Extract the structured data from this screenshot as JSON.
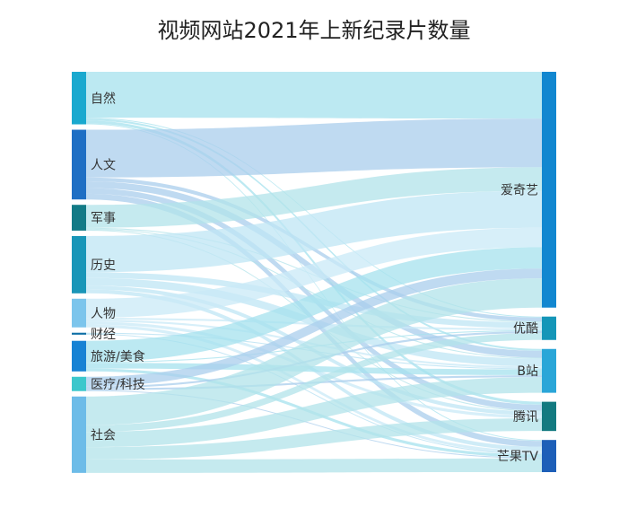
{
  "chart_data": {
    "type": "sankey",
    "title": "视频网站2021年上新纪录片数量",
    "sources": [
      {
        "name": "自然",
        "color": "#1aa9cf"
      },
      {
        "name": "人文",
        "color": "#1f6fc4"
      },
      {
        "name": "军事",
        "color": "#127a86"
      },
      {
        "name": "历史",
        "color": "#1996b8"
      },
      {
        "name": "人物",
        "color": "#7cc5ec"
      },
      {
        "name": "财经",
        "color": "#0e6fa6"
      },
      {
        "name": "旅游/美食",
        "color": "#1682d4"
      },
      {
        "name": "医疗/科技",
        "color": "#3cc7cc"
      },
      {
        "name": "社会",
        "color": "#6dbce8"
      }
    ],
    "targets": [
      {
        "name": "爱奇艺",
        "color": "#1287d0"
      },
      {
        "name": "优酷",
        "color": "#1496b8"
      },
      {
        "name": "B站",
        "color": "#2aa6d8"
      },
      {
        "name": "腾讯",
        "color": "#137a80"
      },
      {
        "name": "芒果TV",
        "color": "#1d5fb8"
      }
    ],
    "links": [
      {
        "source": "自然",
        "target": "爱奇艺",
        "value": 48
      },
      {
        "source": "自然",
        "target": "优酷",
        "value": 1
      },
      {
        "source": "自然",
        "target": "B站",
        "value": 2
      },
      {
        "source": "自然",
        "target": "腾讯",
        "value": 3
      },
      {
        "source": "自然",
        "target": "芒果TV",
        "value": 1
      },
      {
        "source": "人文",
        "target": "爱奇艺",
        "value": 50
      },
      {
        "source": "人文",
        "target": "优酷",
        "value": 4
      },
      {
        "source": "人文",
        "target": "B站",
        "value": 7
      },
      {
        "source": "人文",
        "target": "腾讯",
        "value": 6
      },
      {
        "source": "人文",
        "target": "芒果TV",
        "value": 6
      },
      {
        "source": "军事",
        "target": "爱奇艺",
        "value": 24
      },
      {
        "source": "军事",
        "target": "优酷",
        "value": 1
      },
      {
        "source": "军事",
        "target": "B站",
        "value": 1
      },
      {
        "source": "军事",
        "target": "腾讯",
        "value": 1
      },
      {
        "source": "历史",
        "target": "爱奇艺",
        "value": 38
      },
      {
        "source": "历史",
        "target": "优酷",
        "value": 6
      },
      {
        "source": "历史",
        "target": "B站",
        "value": 8
      },
      {
        "source": "历史",
        "target": "腾讯",
        "value": 4
      },
      {
        "source": "历史",
        "target": "芒果TV",
        "value": 4
      },
      {
        "source": "人物",
        "target": "爱奇艺",
        "value": 20
      },
      {
        "source": "人物",
        "target": "优酷",
        "value": 2
      },
      {
        "source": "人物",
        "target": "B站",
        "value": 2
      },
      {
        "source": "人物",
        "target": "腾讯",
        "value": 3
      },
      {
        "source": "人物",
        "target": "芒果TV",
        "value": 3
      },
      {
        "source": "财经",
        "target": "B站",
        "value": 1
      },
      {
        "source": "财经",
        "target": "芒果TV",
        "value": 1
      },
      {
        "source": "旅游/美食",
        "target": "爱奇艺",
        "value": 22
      },
      {
        "source": "旅游/美食",
        "target": "优酷",
        "value": 1
      },
      {
        "source": "旅游/美食",
        "target": "B站",
        "value": 6
      },
      {
        "source": "旅游/美食",
        "target": "芒果TV",
        "value": 3
      },
      {
        "source": "医疗/科技",
        "target": "爱奇艺",
        "value": 10
      },
      {
        "source": "医疗/科技",
        "target": "优酷",
        "value": 2
      },
      {
        "source": "医疗/科技",
        "target": "B站",
        "value": 2
      },
      {
        "source": "医疗/科技",
        "target": "芒果TV",
        "value": 1
      },
      {
        "source": "社会",
        "target": "爱奇艺",
        "value": 30
      },
      {
        "source": "社会",
        "target": "优酷",
        "value": 7
      },
      {
        "source": "社会",
        "target": "B站",
        "value": 16
      },
      {
        "source": "社会",
        "target": "腾讯",
        "value": 13
      },
      {
        "source": "社会",
        "target": "芒果TV",
        "value": 14
      }
    ]
  }
}
